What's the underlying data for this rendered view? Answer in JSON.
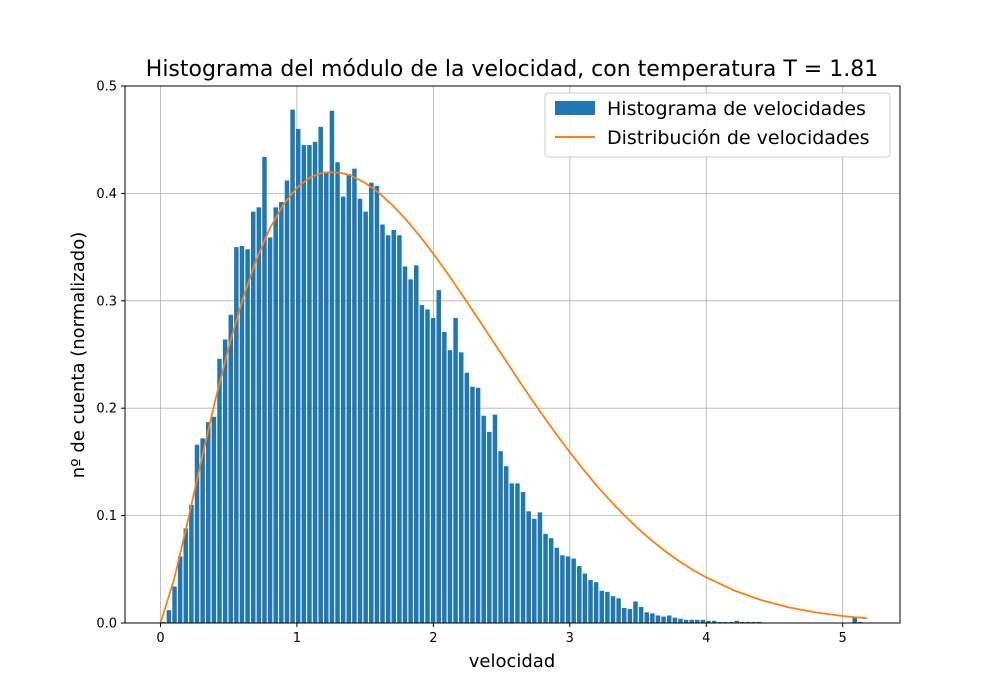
{
  "chart_data": {
    "type": "bar",
    "title": "Histograma del módulo de la velocidad, con temperatura T = 1.81",
    "xlabel": "velocidad",
    "ylabel": "nº de cuenta (normalizado)",
    "xlim": [
      -0.26,
      5.42
    ],
    "ylim": [
      0,
      0.5
    ],
    "grid": true,
    "legend_position": "top-right",
    "x_ticks": [
      0,
      1,
      2,
      3,
      4,
      5
    ],
    "x_tick_labels": [
      "0",
      "1",
      "2",
      "3",
      "4",
      "5"
    ],
    "y_ticks": [
      0.0,
      0.1,
      0.2,
      0.3,
      0.4,
      0.5
    ],
    "y_tick_labels": [
      "0.0",
      "0.1",
      "0.2",
      "0.3",
      "0.4",
      "0.5"
    ],
    "colors": {
      "histogram": "#1f77b4",
      "distribution": "#ff7f0e",
      "grid": "#b0b0b0"
    },
    "histogram": {
      "name": "Histograma de velocidades",
      "bin_start": 0.0,
      "bin_width": 0.0412,
      "bar_fraction": 0.8,
      "values": [
        0.001,
        0.012,
        0.034,
        0.062,
        0.088,
        0.11,
        0.166,
        0.172,
        0.187,
        0.192,
        0.246,
        0.264,
        0.287,
        0.35,
        0.351,
        0.348,
        0.383,
        0.387,
        0.434,
        0.359,
        0.387,
        0.392,
        0.412,
        0.478,
        0.46,
        0.445,
        0.445,
        0.448,
        0.462,
        0.42,
        0.477,
        0.429,
        0.397,
        0.418,
        0.423,
        0.395,
        0.383,
        0.41,
        0.407,
        0.371,
        0.361,
        0.366,
        0.361,
        0.332,
        0.32,
        0.333,
        0.296,
        0.292,
        0.284,
        0.31,
        0.271,
        0.254,
        0.284,
        0.252,
        0.233,
        0.22,
        0.219,
        0.193,
        0.178,
        0.194,
        0.16,
        0.146,
        0.13,
        0.13,
        0.122,
        0.104,
        0.097,
        0.103,
        0.083,
        0.079,
        0.07,
        0.063,
        0.062,
        0.06,
        0.053,
        0.046,
        0.04,
        0.038,
        0.03,
        0.029,
        0.025,
        0.023,
        0.014,
        0.013,
        0.02,
        0.015,
        0.01,
        0.009,
        0.007,
        0.006,
        0.007,
        0.005,
        0.004,
        0.003,
        0.003,
        0.003,
        0.003,
        0.002,
        0.002,
        0.001,
        0.001,
        0.001,
        0.002,
        0.001,
        0.001,
        0.001,
        0.001,
        0.0,
        0.0,
        0.0,
        0.0,
        0.0,
        0.0,
        0.0,
        0.0,
        0.0,
        0.0,
        0.0,
        0.0,
        0.0,
        0.0,
        0.0,
        0.0,
        0.006,
        0.001,
        0.0
      ]
    },
    "distribution": {
      "name": "Distribución de velocidades",
      "x": [
        0.0,
        0.1,
        0.2,
        0.3,
        0.4,
        0.5,
        0.6,
        0.7,
        0.8,
        0.9,
        1.0,
        1.1,
        1.2,
        1.3,
        1.35,
        1.4,
        1.5,
        1.6,
        1.7,
        1.8,
        1.9,
        2.0,
        2.1,
        2.2,
        2.3,
        2.4,
        2.5,
        2.6,
        2.7,
        2.8,
        2.9,
        3.0,
        3.1,
        3.2,
        3.3,
        3.4,
        3.5,
        3.6,
        3.7,
        3.8,
        3.9,
        4.0,
        4.2,
        4.4,
        4.6,
        4.8,
        5.0,
        5.18
      ],
      "y": [
        0.0,
        0.0407,
        0.0948,
        0.1517,
        0.2065,
        0.2567,
        0.3006,
        0.3374,
        0.367,
        0.3895,
        0.4053,
        0.4152,
        0.4196,
        0.4195,
        0.4183,
        0.4163,
        0.4098,
        0.4006,
        0.3891,
        0.3756,
        0.3604,
        0.3438,
        0.3262,
        0.3077,
        0.2888,
        0.2695,
        0.2502,
        0.231,
        0.2121,
        0.1937,
        0.176,
        0.159,
        0.1428,
        0.1275,
        0.1134,
        0.1002,
        0.088,
        0.0769,
        0.0668,
        0.0577,
        0.0496,
        0.0425,
        0.0305,
        0.0214,
        0.0147,
        0.0099,
        0.0065,
        0.0043
      ]
    }
  }
}
